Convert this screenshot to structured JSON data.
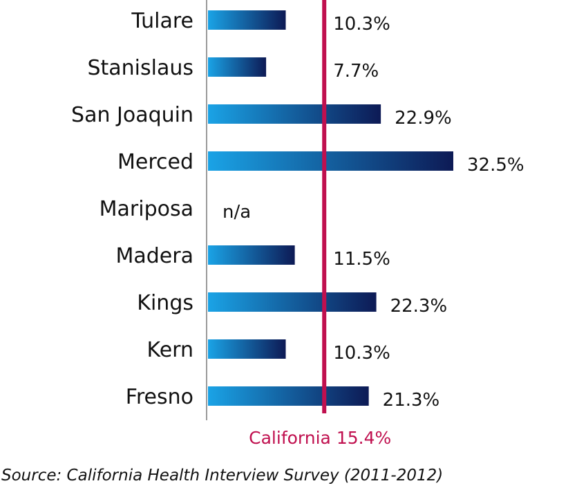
{
  "chart_data": {
    "type": "bar",
    "orientation": "horizontal",
    "categories": [
      "Tulare",
      "Stanislaus",
      "San Joaquin",
      "Merced",
      "Mariposa",
      "Madera",
      "Kings",
      "Kern",
      "Fresno"
    ],
    "values": [
      10.3,
      7.7,
      22.9,
      32.5,
      null,
      11.5,
      22.3,
      10.3,
      21.3
    ],
    "value_labels": [
      "10.3%",
      "7.7%",
      "22.9%",
      "32.5%",
      "n/a",
      "11.5%",
      "22.3%",
      "10.3%",
      "21.3%"
    ],
    "xlim": [
      0,
      35
    ],
    "reference_line": {
      "value": 15.4,
      "label": "California 15.4%",
      "color": "#c0104f"
    },
    "gradient": {
      "start": "#1aa3e6",
      "end": "#0d1a55"
    },
    "source": "Source: California Health Interview Survey (2011-2012)"
  }
}
